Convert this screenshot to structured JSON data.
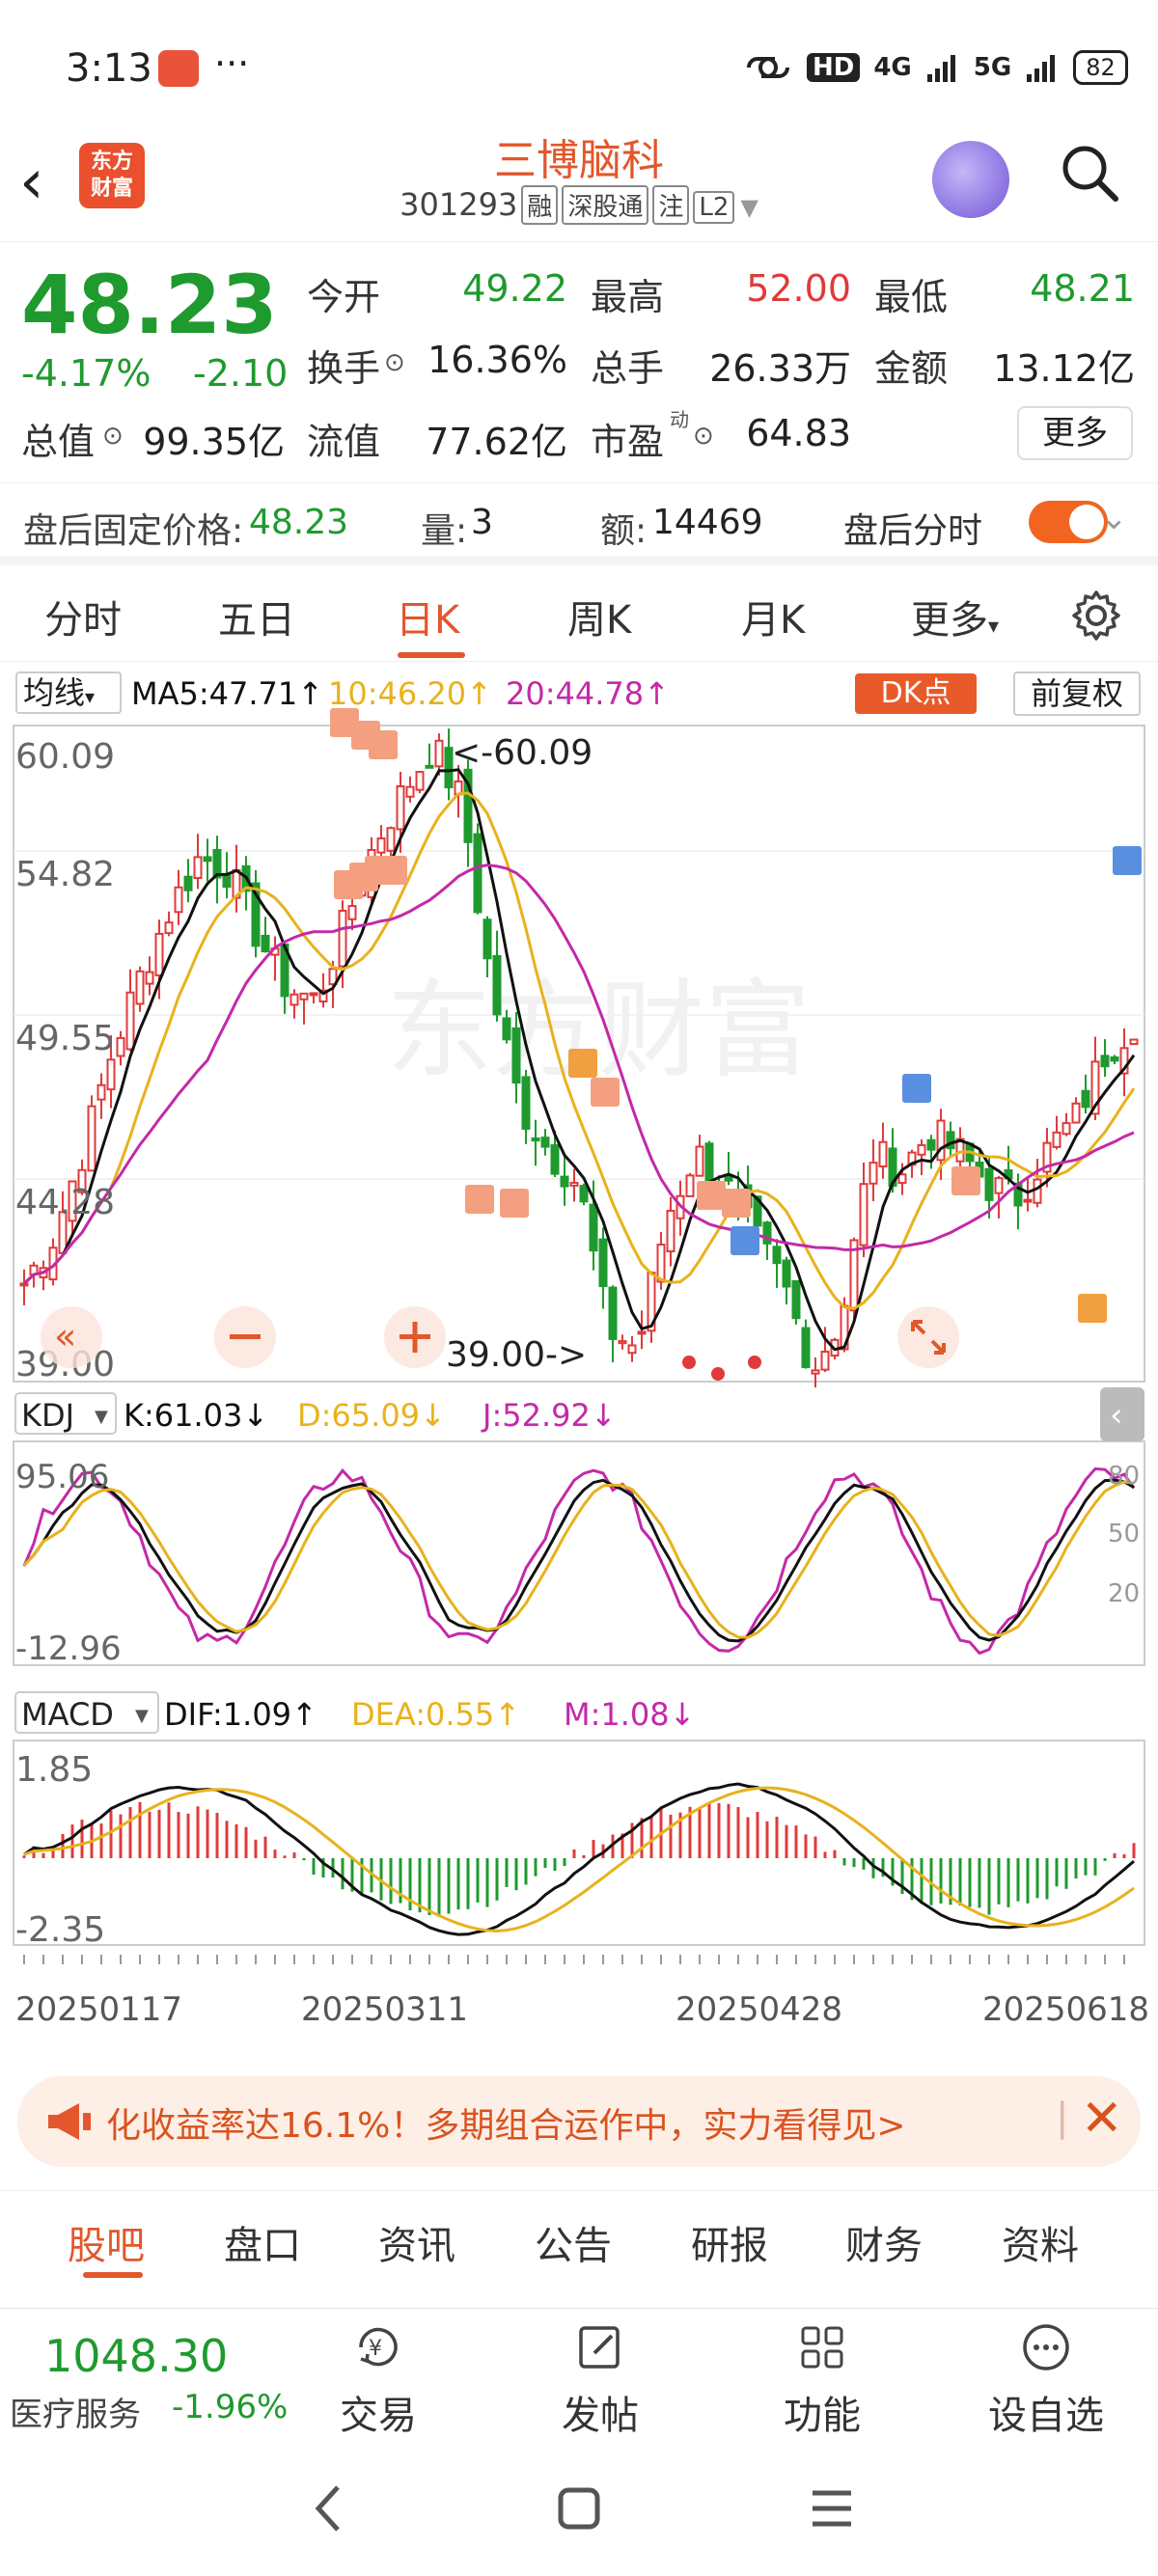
{
  "status_bar": {
    "time": "3:13",
    "dots": "···",
    "network_hd": "HD",
    "signal_4g": "4G",
    "signal_5g": "5G",
    "battery": "82"
  },
  "header": {
    "logo_line1": "东方",
    "logo_line2": "财富",
    "stock_name": "三博脑科",
    "stock_code": "301293",
    "tags": [
      "融",
      "深股通",
      "注",
      "L2"
    ]
  },
  "quote": {
    "price": "48.23",
    "change_pct": "-4.17%",
    "change_amt": "-2.10",
    "market_cap_label": "总值",
    "market_cap_value": "99.35亿",
    "open_label": "今开",
    "open_value": "49.22",
    "high_label": "最高",
    "high_value": "52.00",
    "low_label": "最低",
    "low_value": "48.21",
    "turnover_label": "换手",
    "turnover_value": "16.36%",
    "volume_label": "总手",
    "volume_value": "26.33万",
    "amount_label": "金额",
    "amount_value": "13.12亿",
    "float_label": "流值",
    "float_value": "77.62亿",
    "pe_label": "市盈",
    "pe_sup": "动",
    "pe_value": "64.83",
    "more_label": "更多"
  },
  "after_hours": {
    "price_label": "盘后固定价格:",
    "price_value": "48.23",
    "qty_label": "量:",
    "qty_value": "3",
    "amt_label": "额:",
    "amt_value": "14469",
    "toggle_label": "盘后分时"
  },
  "tabs": [
    "分时",
    "五日",
    "日K",
    "周K",
    "月K",
    "更多"
  ],
  "chart_toolbar": {
    "indicator": "均线",
    "ma5": "MA5:47.71↑",
    "ma10": "10:46.20↑",
    "ma20": "20:44.78↑",
    "dk_label": "DK点",
    "adjust_label": "前复权"
  },
  "kline_axis": {
    "y_top": "60.09",
    "y_2": "54.82",
    "y_3": "49.55",
    "y_4": "44.28",
    "y_bottom": "39.00",
    "max_marker": "<-60.09",
    "min_marker": "39.00->"
  },
  "kdj": {
    "name": "KDJ",
    "k": "K:61.03↓",
    "d": "D:65.09↓",
    "j": "J:52.92↓",
    "y_top": "95.06",
    "y_bottom": "-12.96",
    "levels": [
      "80",
      "50",
      "20"
    ]
  },
  "macd": {
    "name": "MACD",
    "dif": "DIF:1.09↑",
    "dea": "DEA:0.55↑",
    "m": "M:1.08↓",
    "y_top": "1.85",
    "y_bottom": "-2.35"
  },
  "x_axis_dates": [
    "20250117",
    "20250311",
    "20250428",
    "20250618"
  ],
  "watermark": "东方财富",
  "chart_data": {
    "type": "candlestick",
    "dates": [
      "20250117",
      "20250311",
      "20250428",
      "20250618"
    ],
    "ylim": [
      39.0,
      60.09
    ],
    "max_price": 60.09,
    "min_price": 39.0,
    "ma_lines": [
      "MA5",
      "MA10",
      "MA20"
    ],
    "ma_values": {
      "MA5": 47.71,
      "MA10": 46.2,
      "MA20": 44.78
    },
    "kdj": {
      "K": 61.03,
      "D": 65.09,
      "J": 52.92,
      "ylim": [
        -12.96,
        95.06
      ]
    },
    "macd": {
      "DIF": 1.09,
      "DEA": 0.55,
      "M": 1.08,
      "ylim": [
        -2.35,
        1.85
      ]
    }
  },
  "colors": {
    "up": "#e03a3a",
    "down": "#1f9a2e",
    "accent": "#e2572c",
    "ma5": "#111111",
    "ma10": "#e8b21c",
    "ma20": "#c429a8"
  },
  "banner": {
    "text": "化收益率达16.1%！多期组合运作中，实力看得见>",
    "close": "✕"
  },
  "bottom_tabs": [
    "股吧",
    "盘口",
    "资讯",
    "公告",
    "研报",
    "财务",
    "资料"
  ],
  "footer": {
    "index_value": "1048.30",
    "index_name": "医疗服务",
    "index_change": "-1.96%",
    "buttons": [
      "交易",
      "发帖",
      "功能",
      "设自选"
    ]
  }
}
